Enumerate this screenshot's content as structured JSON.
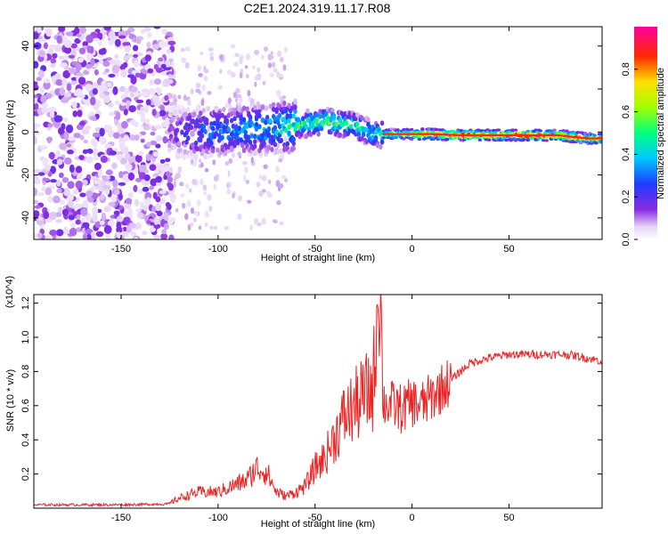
{
  "title": "C2E1.2024.319.11.17.R08",
  "chart_data": [
    {
      "type": "heatmap",
      "xlabel": "Height of straight line (km)",
      "ylabel": "Frequency (Hz)",
      "xlim": [
        -195,
        98
      ],
      "ylim": [
        -50,
        49
      ],
      "x_ticks": [
        -150,
        -100,
        -50,
        0,
        50
      ],
      "y_ticks": [
        -40,
        -20,
        0,
        20,
        40
      ],
      "colorbar": {
        "label": "Normalized spectral amplitude",
        "range": [
          0,
          1
        ],
        "ticks": [
          0.0,
          0.2,
          0.4,
          0.6,
          0.8
        ],
        "tick_labels": [
          "0.0",
          "0.2",
          "0.4",
          "0.6",
          "0.8"
        ],
        "colormap": "white-purple-blue-cyan-green-yellow-red-magenta"
      },
      "ridge": [
        {
          "x": -195,
          "f": 0,
          "amp": 0.1
        },
        {
          "x": -125,
          "f": 0,
          "amp": 0.15
        },
        {
          "x": -110,
          "f": 0,
          "amp": 0.3
        },
        {
          "x": -90,
          "f": 1,
          "amp": 0.35
        },
        {
          "x": -70,
          "f": 2,
          "amp": 0.45
        },
        {
          "x": -60,
          "f": 3,
          "amp": 0.55
        },
        {
          "x": -45,
          "f": 5,
          "amp": 0.6
        },
        {
          "x": -30,
          "f": 3,
          "amp": 0.55
        },
        {
          "x": -20,
          "f": -1,
          "amp": 0.5
        },
        {
          "x": -10,
          "f": -1,
          "amp": 0.65
        },
        {
          "x": 0,
          "f": -1,
          "amp": 0.75
        },
        {
          "x": 10,
          "f": -1,
          "amp": 0.85
        },
        {
          "x": 25,
          "f": -1.5,
          "amp": 0.95
        },
        {
          "x": 50,
          "f": -1.5,
          "amp": 1.0
        },
        {
          "x": 75,
          "f": -1.5,
          "amp": 0.95
        },
        {
          "x": 90,
          "f": -3,
          "amp": 0.85
        },
        {
          "x": 98,
          "f": -3,
          "amp": 0.8
        }
      ]
    },
    {
      "type": "line",
      "xlabel": "Height of straight line (km)",
      "ylabel": "SNR (10 * v/v)",
      "y_multiplier": "(x10^4)",
      "xlim": [
        -195,
        98
      ],
      "ylim": [
        0,
        1.25
      ],
      "x_ticks": [
        -150,
        -100,
        -50,
        0,
        50
      ],
      "y_ticks": [
        0.2,
        0.4,
        0.6,
        0.8,
        1.0,
        1.2
      ],
      "y_tick_labels": [
        "0.2",
        "0.4",
        "0.6",
        "0.8",
        "1.0",
        "1.2"
      ],
      "series": [
        {
          "color": "#ee2222",
          "x": [
            -195,
            -150,
            -125,
            -120,
            -110,
            -100,
            -90,
            -85,
            -80,
            -75,
            -70,
            -65,
            -60,
            -55,
            -50,
            -45,
            -40,
            -35,
            -30,
            -25,
            -20,
            -17,
            -15,
            -10,
            -5,
            0,
            5,
            10,
            15,
            20,
            25,
            30,
            40,
            50,
            60,
            70,
            80,
            90,
            98
          ],
          "y": [
            0.02,
            0.02,
            0.025,
            0.05,
            0.08,
            0.08,
            0.12,
            0.14,
            0.2,
            0.18,
            0.08,
            0.06,
            0.08,
            0.11,
            0.2,
            0.25,
            0.35,
            0.45,
            0.5,
            0.55,
            0.6,
            1.2,
            0.62,
            0.6,
            0.58,
            0.62,
            0.6,
            0.65,
            0.7,
            0.75,
            0.8,
            0.85,
            0.88,
            0.9,
            0.9,
            0.9,
            0.9,
            0.88,
            0.86
          ]
        }
      ]
    }
  ]
}
